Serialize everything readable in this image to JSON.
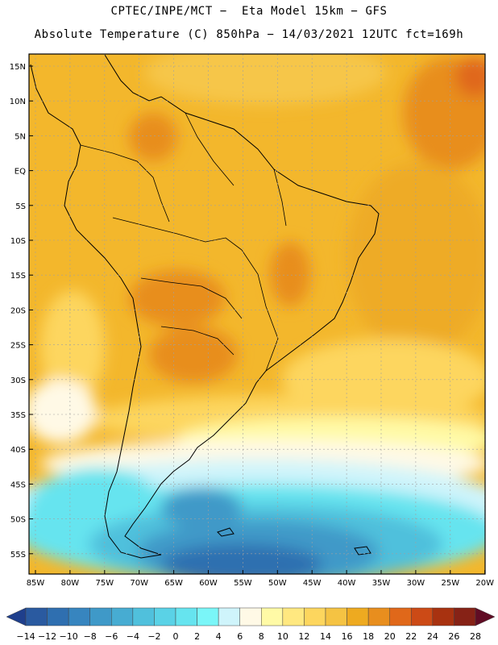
{
  "header": {
    "line1": "CPTEC/INPE/MCT −  Eta Model 15km − GFS",
    "line2": "Absolute Temperature (C) 850hPa − 14/03/2021 12UTC fct=169h"
  },
  "axes": {
    "lat_labels": [
      "15N",
      "10N",
      "5N",
      "EQ",
      "5S",
      "10S",
      "15S",
      "20S",
      "25S",
      "30S",
      "35S",
      "40S",
      "45S",
      "50S",
      "55S"
    ],
    "lon_labels": [
      "85W",
      "80W",
      "75W",
      "70W",
      "65W",
      "60W",
      "55W",
      "50W",
      "45W",
      "40W",
      "35W",
      "30W",
      "25W",
      "20W"
    ]
  },
  "colorbar": {
    "labels": [
      "−14",
      "−12",
      "−10",
      "−8",
      "−6",
      "−4",
      "−2",
      "0",
      "2",
      "4",
      "6",
      "8",
      "10",
      "12",
      "14",
      "16",
      "18",
      "20",
      "22",
      "24",
      "26",
      "28"
    ],
    "colors": [
      "#1f3f8c",
      "#2a5aa0",
      "#2f6fb0",
      "#3785bf",
      "#3f99c8",
      "#47acd2",
      "#50c0dc",
      "#5ad2e6",
      "#66e4ef",
      "#7af6f8",
      "#cff4fb",
      "#fff9e6",
      "#fffaa6",
      "#ffe880",
      "#fdd65e",
      "#f5c343",
      "#eeaa20",
      "#e88e1e",
      "#e0681a",
      "#cc4a16",
      "#a83210",
      "#862216",
      "#600c24"
    ]
  }
}
